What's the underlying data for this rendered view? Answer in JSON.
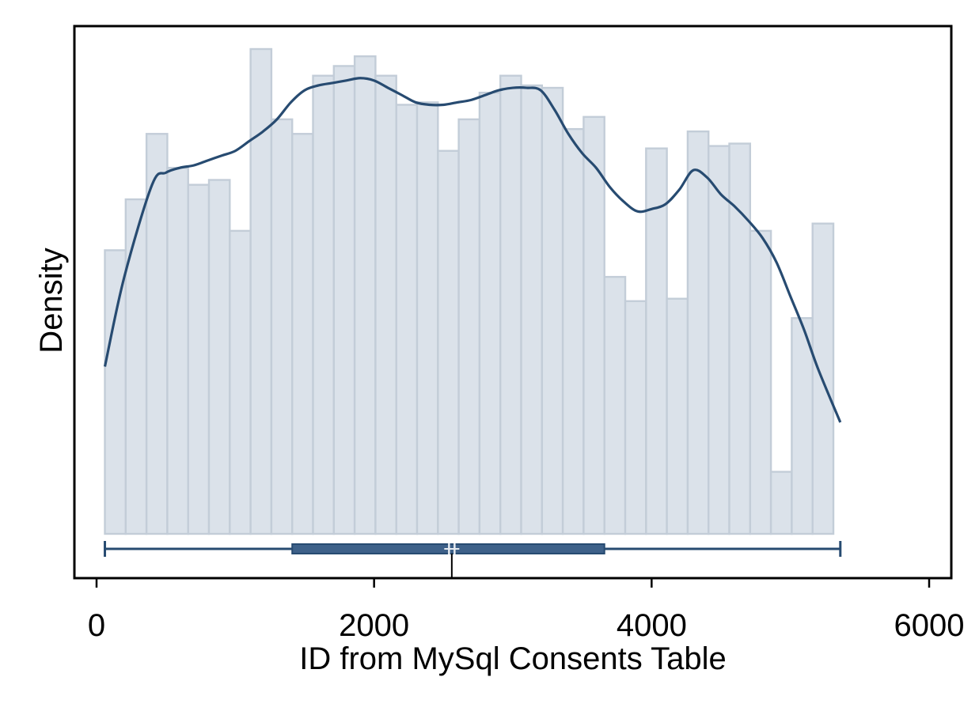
{
  "chart_data": {
    "type": "bar",
    "subtype": "histogram-with-kde-and-boxplot",
    "xlabel": "ID from MySql Consents Table",
    "ylabel": "Density",
    "xlim": [
      0,
      6000
    ],
    "x_ticks": [
      0,
      2000,
      4000,
      6000
    ],
    "y_ticks_shown": false,
    "grid": false,
    "legend": "none",
    "histogram": {
      "bin_width": 150,
      "bin_start": 60,
      "relative_heights": [
        0.585,
        0.69,
        0.825,
        0.755,
        0.72,
        0.73,
        0.625,
        1.0,
        0.855,
        0.825,
        0.945,
        0.965,
        0.985,
        0.945,
        0.885,
        0.89,
        0.79,
        0.855,
        0.91,
        0.945,
        0.925,
        0.92,
        0.835,
        0.86,
        0.53,
        0.48,
        0.795,
        0.485,
        0.83,
        0.8,
        0.805,
        0.625,
        0.128,
        0.445,
        0.64
      ]
    },
    "density_curve": {
      "x": [
        60,
        200,
        400,
        500,
        600,
        700,
        800,
        900,
        1000,
        1100,
        1200,
        1300,
        1400,
        1500,
        1600,
        1700,
        1800,
        1900,
        2000,
        2100,
        2200,
        2300,
        2400,
        2500,
        2600,
        2700,
        2800,
        2900,
        3000,
        3100,
        3200,
        3300,
        3400,
        3500,
        3600,
        3700,
        3800,
        3900,
        4000,
        4100,
        4200,
        4300,
        4400,
        4500,
        4600,
        4700,
        4800,
        4900,
        5000,
        5100,
        5200,
        5360
      ],
      "relative_density": [
        0.345,
        0.53,
        0.72,
        0.745,
        0.755,
        0.76,
        0.77,
        0.78,
        0.79,
        0.81,
        0.83,
        0.855,
        0.89,
        0.915,
        0.925,
        0.93,
        0.935,
        0.94,
        0.935,
        0.92,
        0.905,
        0.89,
        0.885,
        0.885,
        0.89,
        0.895,
        0.905,
        0.915,
        0.92,
        0.92,
        0.915,
        0.875,
        0.825,
        0.785,
        0.755,
        0.715,
        0.685,
        0.665,
        0.67,
        0.68,
        0.71,
        0.75,
        0.735,
        0.7,
        0.675,
        0.645,
        0.61,
        0.56,
        0.49,
        0.42,
        0.34,
        0.23
      ]
    },
    "boxplot": {
      "min": 60,
      "q1": 1410,
      "median": 2540,
      "mean": 2580,
      "q3": 3660,
      "max": 5360
    },
    "colors": {
      "bar_fill": "#dbe2ea",
      "bar_edge": "#c3cdd8",
      "curve": "#274b71",
      "box_fill": "#3e6189",
      "axis": "#000000"
    }
  }
}
